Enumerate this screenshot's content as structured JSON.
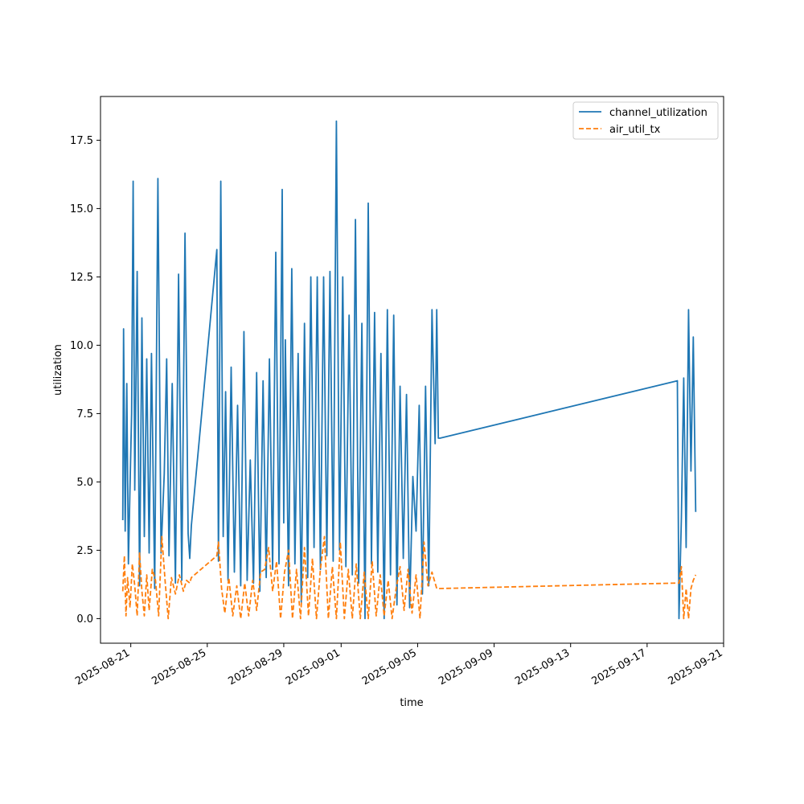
{
  "chart_data": {
    "type": "line",
    "title": "",
    "xlabel": "time",
    "ylabel": "utilization",
    "xlim": [
      "2025-08-19T10:00:00",
      "2025-09-21T00:00:00"
    ],
    "ylim": [
      -0.9,
      19.1
    ],
    "grid": false,
    "legend_position": "top-right",
    "x_ticks": [
      "2025-08-21",
      "2025-08-25",
      "2025-08-29",
      "2025-09-01",
      "2025-09-05",
      "2025-09-09",
      "2025-09-13",
      "2025-09-17",
      "2025-09-21"
    ],
    "y_ticks": [
      0.0,
      2.5,
      5.0,
      7.5,
      10.0,
      12.5,
      15.0,
      17.5
    ],
    "y_tick_labels": [
      "0.0",
      "2.5",
      "5.0",
      "7.5",
      "10.0",
      "12.5",
      "15.0",
      "17.5"
    ],
    "series": [
      {
        "name": "channel_utilization",
        "color": "#1f77b4",
        "style": "solid",
        "x": [
          "2025-08-20T14:00",
          "2025-08-20T15:00",
          "2025-08-20T17:00",
          "2025-08-20T19:00",
          "2025-08-20T21:00",
          "2025-08-20T23:00",
          "2025-08-21T01:00",
          "2025-08-21T03:00",
          "2025-08-21T05:00",
          "2025-08-21T08:00",
          "2025-08-21T11:00",
          "2025-08-21T14:00",
          "2025-08-21T17:00",
          "2025-08-21T20:00",
          "2025-08-21T23:00",
          "2025-08-22T02:00",
          "2025-08-22T06:00",
          "2025-08-22T10:00",
          "2025-08-22T14:00",
          "2025-08-22T18:00",
          "2025-08-22T21:00",
          "2025-08-23T00:00",
          "2025-08-23T04:00",
          "2025-08-23T08:00",
          "2025-08-23T12:00",
          "2025-08-23T16:00",
          "2025-08-23T20:00",
          "2025-08-24T00:00",
          "2025-08-24T02:00",
          "2025-08-24T04:00",
          "2025-08-25T12:00",
          "2025-08-25T14:00",
          "2025-08-25T17:00",
          "2025-08-25T20:00",
          "2025-08-25T23:00",
          "2025-08-26T02:00",
          "2025-08-26T06:00",
          "2025-08-26T10:00",
          "2025-08-26T14:00",
          "2025-08-26T18:00",
          "2025-08-26T22:00",
          "2025-08-27T02:00",
          "2025-08-27T06:00",
          "2025-08-27T10:00",
          "2025-08-27T14:00",
          "2025-08-27T18:00",
          "2025-08-27T22:00",
          "2025-08-28T02:00",
          "2025-08-28T06:00",
          "2025-08-28T10:00",
          "2025-08-28T14:00",
          "2025-08-28T18:00",
          "2025-08-28T22:00",
          "2025-08-29T00:00",
          "2025-08-29T02:00",
          "2025-08-29T06:00",
          "2025-08-29T10:00",
          "2025-08-29T14:00",
          "2025-08-29T18:00",
          "2025-08-29T22:00",
          "2025-08-30T02:00",
          "2025-08-30T06:00",
          "2025-08-30T10:00",
          "2025-08-30T14:00",
          "2025-08-30T18:00",
          "2025-08-30T22:00",
          "2025-08-31T02:00",
          "2025-08-31T06:00",
          "2025-08-31T10:00",
          "2025-08-31T14:00",
          "2025-08-31T18:00",
          "2025-08-31T22:00",
          "2025-09-01T02:00",
          "2025-09-01T06:00",
          "2025-09-01T10:00",
          "2025-09-01T14:00",
          "2025-09-01T18:00",
          "2025-09-01T22:00",
          "2025-09-02T02:00",
          "2025-09-02T06:00",
          "2025-09-02T10:00",
          "2025-09-02T14:00",
          "2025-09-02T18:00",
          "2025-09-02T22:00",
          "2025-09-03T02:00",
          "2025-09-03T06:00",
          "2025-09-03T10:00",
          "2025-09-03T14:00",
          "2025-09-03T18:00",
          "2025-09-03T22:00",
          "2025-09-04T02:00",
          "2025-09-04T06:00",
          "2025-09-04T10:00",
          "2025-09-04T14:00",
          "2025-09-04T18:00",
          "2025-09-04T22:00",
          "2025-09-05T02:00",
          "2025-09-05T06:00",
          "2025-09-05T10:00",
          "2025-09-05T14:00",
          "2025-09-05T18:00",
          "2025-09-05T22:00",
          "2025-09-06T00:00",
          "2025-09-06T02:00",
          "2025-09-06T04:00",
          "2025-09-18T14:00",
          "2025-09-18T16:00",
          "2025-09-18T19:00",
          "2025-09-18T22:00",
          "2025-09-19T01:00",
          "2025-09-19T04:00",
          "2025-09-19T07:00",
          "2025-09-19T10:00",
          "2025-09-19T13:00"
        ],
        "y": [
          3.6,
          10.6,
          3.2,
          8.6,
          2.0,
          4.8,
          7.5,
          16.0,
          4.7,
          12.7,
          1.2,
          11.0,
          3.0,
          9.5,
          2.4,
          9.7,
          1.1,
          16.1,
          2.4,
          5.3,
          9.5,
          2.3,
          8.6,
          1.3,
          12.6,
          1.4,
          14.1,
          3.1,
          2.2,
          3.4,
          13.5,
          2.1,
          16.0,
          3.0,
          8.3,
          1.4,
          9.2,
          1.7,
          7.8,
          1.2,
          10.5,
          1.4,
          5.8,
          1.3,
          9.0,
          1.0,
          8.7,
          1.5,
          9.5,
          1.8,
          13.4,
          2.0,
          15.7,
          3.5,
          10.2,
          1.2,
          12.8,
          2.0,
          9.7,
          0.6,
          10.8,
          1.5,
          12.5,
          2.6,
          12.5,
          1.8,
          12.5,
          2.3,
          12.7,
          2.1,
          18.2,
          2.5,
          12.5,
          1.9,
          11.1,
          1.6,
          14.6,
          1.3,
          10.8,
          0.0,
          15.2,
          2.0,
          11.2,
          1.7,
          9.7,
          0.0,
          11.3,
          1.6,
          11.1,
          0.5,
          8.5,
          2.2,
          8.2,
          0.4,
          5.2,
          3.2,
          7.8,
          0.9,
          8.5,
          1.2,
          11.3,
          6.4,
          11.3,
          6.6,
          6.6,
          8.7,
          0.0,
          3.7,
          8.8,
          2.6,
          11.3,
          5.4,
          10.3,
          3.9
        ],
        "color_note": "",
        "hidden": false
      },
      {
        "name": "air_util_tx",
        "color": "#ff7f0e",
        "style": "dashed",
        "x": [
          "2025-08-20T14:00",
          "2025-08-20T16:00",
          "2025-08-20T18:00",
          "2025-08-20T20:00",
          "2025-08-20T23:00",
          "2025-08-21T02:00",
          "2025-08-21T05:00",
          "2025-08-21T08:00",
          "2025-08-21T11:00",
          "2025-08-21T14:00",
          "2025-08-21T17:00",
          "2025-08-21T20:00",
          "2025-08-21T23:00",
          "2025-08-22T03:00",
          "2025-08-22T07:00",
          "2025-08-22T11:00",
          "2025-08-22T15:00",
          "2025-08-22T19:00",
          "2025-08-22T23:00",
          "2025-08-23T03:00",
          "2025-08-23T08:00",
          "2025-08-23T13:00",
          "2025-08-23T18:00",
          "2025-08-23T22:00",
          "2025-08-24T02:00",
          "2025-08-24T04:00",
          "2025-08-25T12:00",
          "2025-08-25T14:00",
          "2025-08-25T18:00",
          "2025-08-25T22:00",
          "2025-08-26T03:00",
          "2025-08-26T08:00",
          "2025-08-26T13:00",
          "2025-08-26T18:00",
          "2025-08-26T23:00",
          "2025-08-27T04:00",
          "2025-08-27T09:00",
          "2025-08-27T14:00",
          "2025-08-27T19:00",
          "2025-08-28T00:00",
          "2025-08-28T05:00",
          "2025-08-28T10:00",
          "2025-08-28T15:00",
          "2025-08-28T20:00",
          "2025-08-29T01:00",
          "2025-08-29T06:00",
          "2025-08-29T11:00",
          "2025-08-29T16:00",
          "2025-08-29T21:00",
          "2025-08-30T02:00",
          "2025-08-30T07:00",
          "2025-08-30T12:00",
          "2025-08-30T17:00",
          "2025-08-30T22:00",
          "2025-08-31T03:00",
          "2025-08-31T08:00",
          "2025-08-31T13:00",
          "2025-08-31T18:00",
          "2025-08-31T23:00",
          "2025-09-01T04:00",
          "2025-09-01T09:00",
          "2025-09-01T14:00",
          "2025-09-01T19:00",
          "2025-09-02T00:00",
          "2025-09-02T05:00",
          "2025-09-02T10:00",
          "2025-09-02T15:00",
          "2025-09-02T20:00",
          "2025-09-03T01:00",
          "2025-09-03T06:00",
          "2025-09-03T11:00",
          "2025-09-03T16:00",
          "2025-09-03T21:00",
          "2025-09-04T02:00",
          "2025-09-04T07:00",
          "2025-09-04T12:00",
          "2025-09-04T17:00",
          "2025-09-04T22:00",
          "2025-09-05T03:00",
          "2025-09-05T08:00",
          "2025-09-05T13:00",
          "2025-09-05T18:00",
          "2025-09-05T22:00",
          "2025-09-06T00:00",
          "2025-09-06T04:00",
          "2025-09-18T14:00",
          "2025-09-18T16:00",
          "2025-09-18T19:00",
          "2025-09-18T22:00",
          "2025-09-19T01:00",
          "2025-09-19T04:00",
          "2025-09-19T07:00",
          "2025-09-19T10:00",
          "2025-09-19T13:00"
        ],
        "y": [
          1.0,
          2.3,
          0.1,
          1.5,
          0.4,
          2.0,
          1.2,
          0.1,
          2.4,
          1.0,
          0.1,
          1.6,
          0.3,
          1.8,
          1.4,
          0.1,
          3.0,
          1.4,
          0.0,
          1.5,
          0.9,
          1.6,
          1.0,
          1.4,
          1.3,
          1.5,
          2.3,
          2.8,
          1.1,
          0.2,
          1.5,
          0.1,
          1.2,
          0.0,
          1.3,
          0.1,
          1.4,
          0.3,
          1.7,
          1.8,
          2.6,
          1.0,
          2.1,
          0.0,
          1.7,
          2.5,
          0.0,
          1.8,
          0.0,
          2.6,
          0.1,
          2.2,
          0.0,
          1.8,
          3.0,
          0.0,
          1.9,
          0.0,
          2.8,
          0.0,
          1.8,
          0.0,
          2.0,
          0.0,
          1.7,
          0.0,
          2.1,
          0.1,
          1.6,
          0.1,
          1.4,
          0.0,
          1.1,
          1.9,
          0.3,
          1.8,
          0.2,
          1.6,
          0.0,
          2.8,
          1.2,
          1.7,
          1.3,
          1.1,
          1.1,
          1.3,
          1.3,
          1.9,
          0.0,
          1.1,
          0.0,
          1.1,
          1.4,
          1.6
        ],
        "hidden": false
      }
    ]
  }
}
